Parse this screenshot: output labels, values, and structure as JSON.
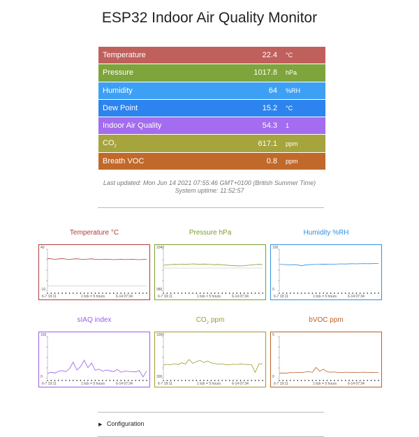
{
  "page": {
    "title": "ESP32 Indoor Air Quality Monitor"
  },
  "readings": [
    {
      "label": "Temperature",
      "value": "22.4",
      "unit": "°C",
      "color": "#c0605c"
    },
    {
      "label": "Pressure",
      "value": "1017.8",
      "unit": "hPa",
      "color": "#7ea43c"
    },
    {
      "label": "Humidity",
      "value": "64",
      "unit": "%RH",
      "color": "#3ea0f5"
    },
    {
      "label": "Dew Point",
      "value": "15.2",
      "unit": "°C",
      "color": "#2e84ee"
    },
    {
      "label": "Indoor Air Quality",
      "value": "54.3",
      "unit": "1",
      "color": "#a46cef"
    },
    {
      "label": "CO2",
      "value": "617.1",
      "unit": "ppm",
      "color": "#a6a43c"
    },
    {
      "label": "Breath VOC",
      "value": "0.8",
      "unit": "ppm",
      "color": "#c1692a"
    }
  ],
  "status": {
    "last_updated": "Last updated: Mon Jun 14 2021 07:55:46 GMT+0100 (British Summer Time)",
    "uptime": "System uptime: 11:52:57"
  },
  "charts_common": {
    "x_start": "6-7 19:11",
    "x_mid": "1 tick = 5 hours",
    "x_end": "6-14 07:34"
  },
  "chart_data": [
    {
      "type": "line",
      "title": "Temperature °C",
      "ylim": [
        -10,
        40
      ],
      "color": "#b03a3a",
      "ref_line": -4,
      "values": [
        29,
        28.5,
        28,
        28.4,
        28.8,
        28.2,
        27.8,
        28.3,
        28.6,
        28.1,
        27.9,
        28.2,
        28.5,
        28.0,
        27.6,
        27.9,
        28.1,
        27.8,
        27.5,
        27.7,
        27.9,
        27.6,
        27.8,
        28.0,
        27.7,
        27.5,
        27.8,
        27.9
      ]
    },
    {
      "type": "line",
      "title": "Pressure hPa",
      "ylim": [
        980,
        1040
      ],
      "color": "#7c9c2c",
      "ref_line": 1013,
      "values": [
        1017,
        1017.5,
        1018,
        1018.3,
        1018.1,
        1018.5,
        1018.2,
        1018.6,
        1019,
        1018.7,
        1018.4,
        1018.8,
        1018.5,
        1018.1,
        1017.8,
        1018.2,
        1017.6,
        1017.2,
        1016.8,
        1016.5,
        1016.2,
        1016.0,
        1016.4,
        1017.0,
        1017.5,
        1018.0,
        1018.3,
        1018.0
      ]
    },
    {
      "type": "line",
      "title": "Humidity %RH",
      "ylim": [
        0,
        100
      ],
      "color": "#2f8fe0",
      "values": [
        64,
        63.5,
        63,
        62.8,
        63.2,
        62.6,
        60.5,
        62.2,
        63,
        63.4,
        63.8,
        64,
        64.3,
        64.1,
        64.6,
        64.2,
        64.8,
        65,
        64.7,
        65.1,
        65.3,
        65.1,
        65.4,
        65.6,
        65.3,
        65.5,
        65.8,
        65.6
      ]
    },
    {
      "type": "line",
      "title": "sIAQ index",
      "ylim": [
        0,
        150
      ],
      "color": "#9a5ce8",
      "values": [
        18,
        22,
        19,
        25,
        28,
        24,
        35,
        58,
        30,
        42,
        65,
        38,
        55,
        29,
        33,
        26,
        30,
        27,
        24,
        32,
        22,
        26,
        25,
        24,
        23,
        28,
        5,
        26
      ]
    },
    {
      "type": "line",
      "title": "CO2 ppm",
      "ylim": [
        300,
        1000
      ],
      "color": "#a09a2a",
      "values": [
        520,
        535,
        528,
        545,
        530,
        560,
        540,
        615,
        550,
        580,
        600,
        565,
        590,
        560,
        548,
        535,
        542,
        530,
        528,
        536,
        532,
        540,
        535,
        530,
        528,
        400,
        540,
        545
      ]
    },
    {
      "type": "line",
      "title": "bVOC ppm",
      "ylim": [
        0,
        5
      ],
      "color": "#b86024",
      "values": [
        0.6,
        0.65,
        0.62,
        0.7,
        0.68,
        0.72,
        0.7,
        0.75,
        0.8,
        0.72,
        1.3,
        0.85,
        1.1,
        0.78,
        0.74,
        0.76,
        0.72,
        0.7,
        0.74,
        0.71,
        0.73,
        0.7,
        0.72,
        0.74,
        0.7,
        0.72,
        0.71,
        0.73
      ]
    }
  ],
  "config": {
    "label": "Configuration",
    "arrow": "▶"
  }
}
